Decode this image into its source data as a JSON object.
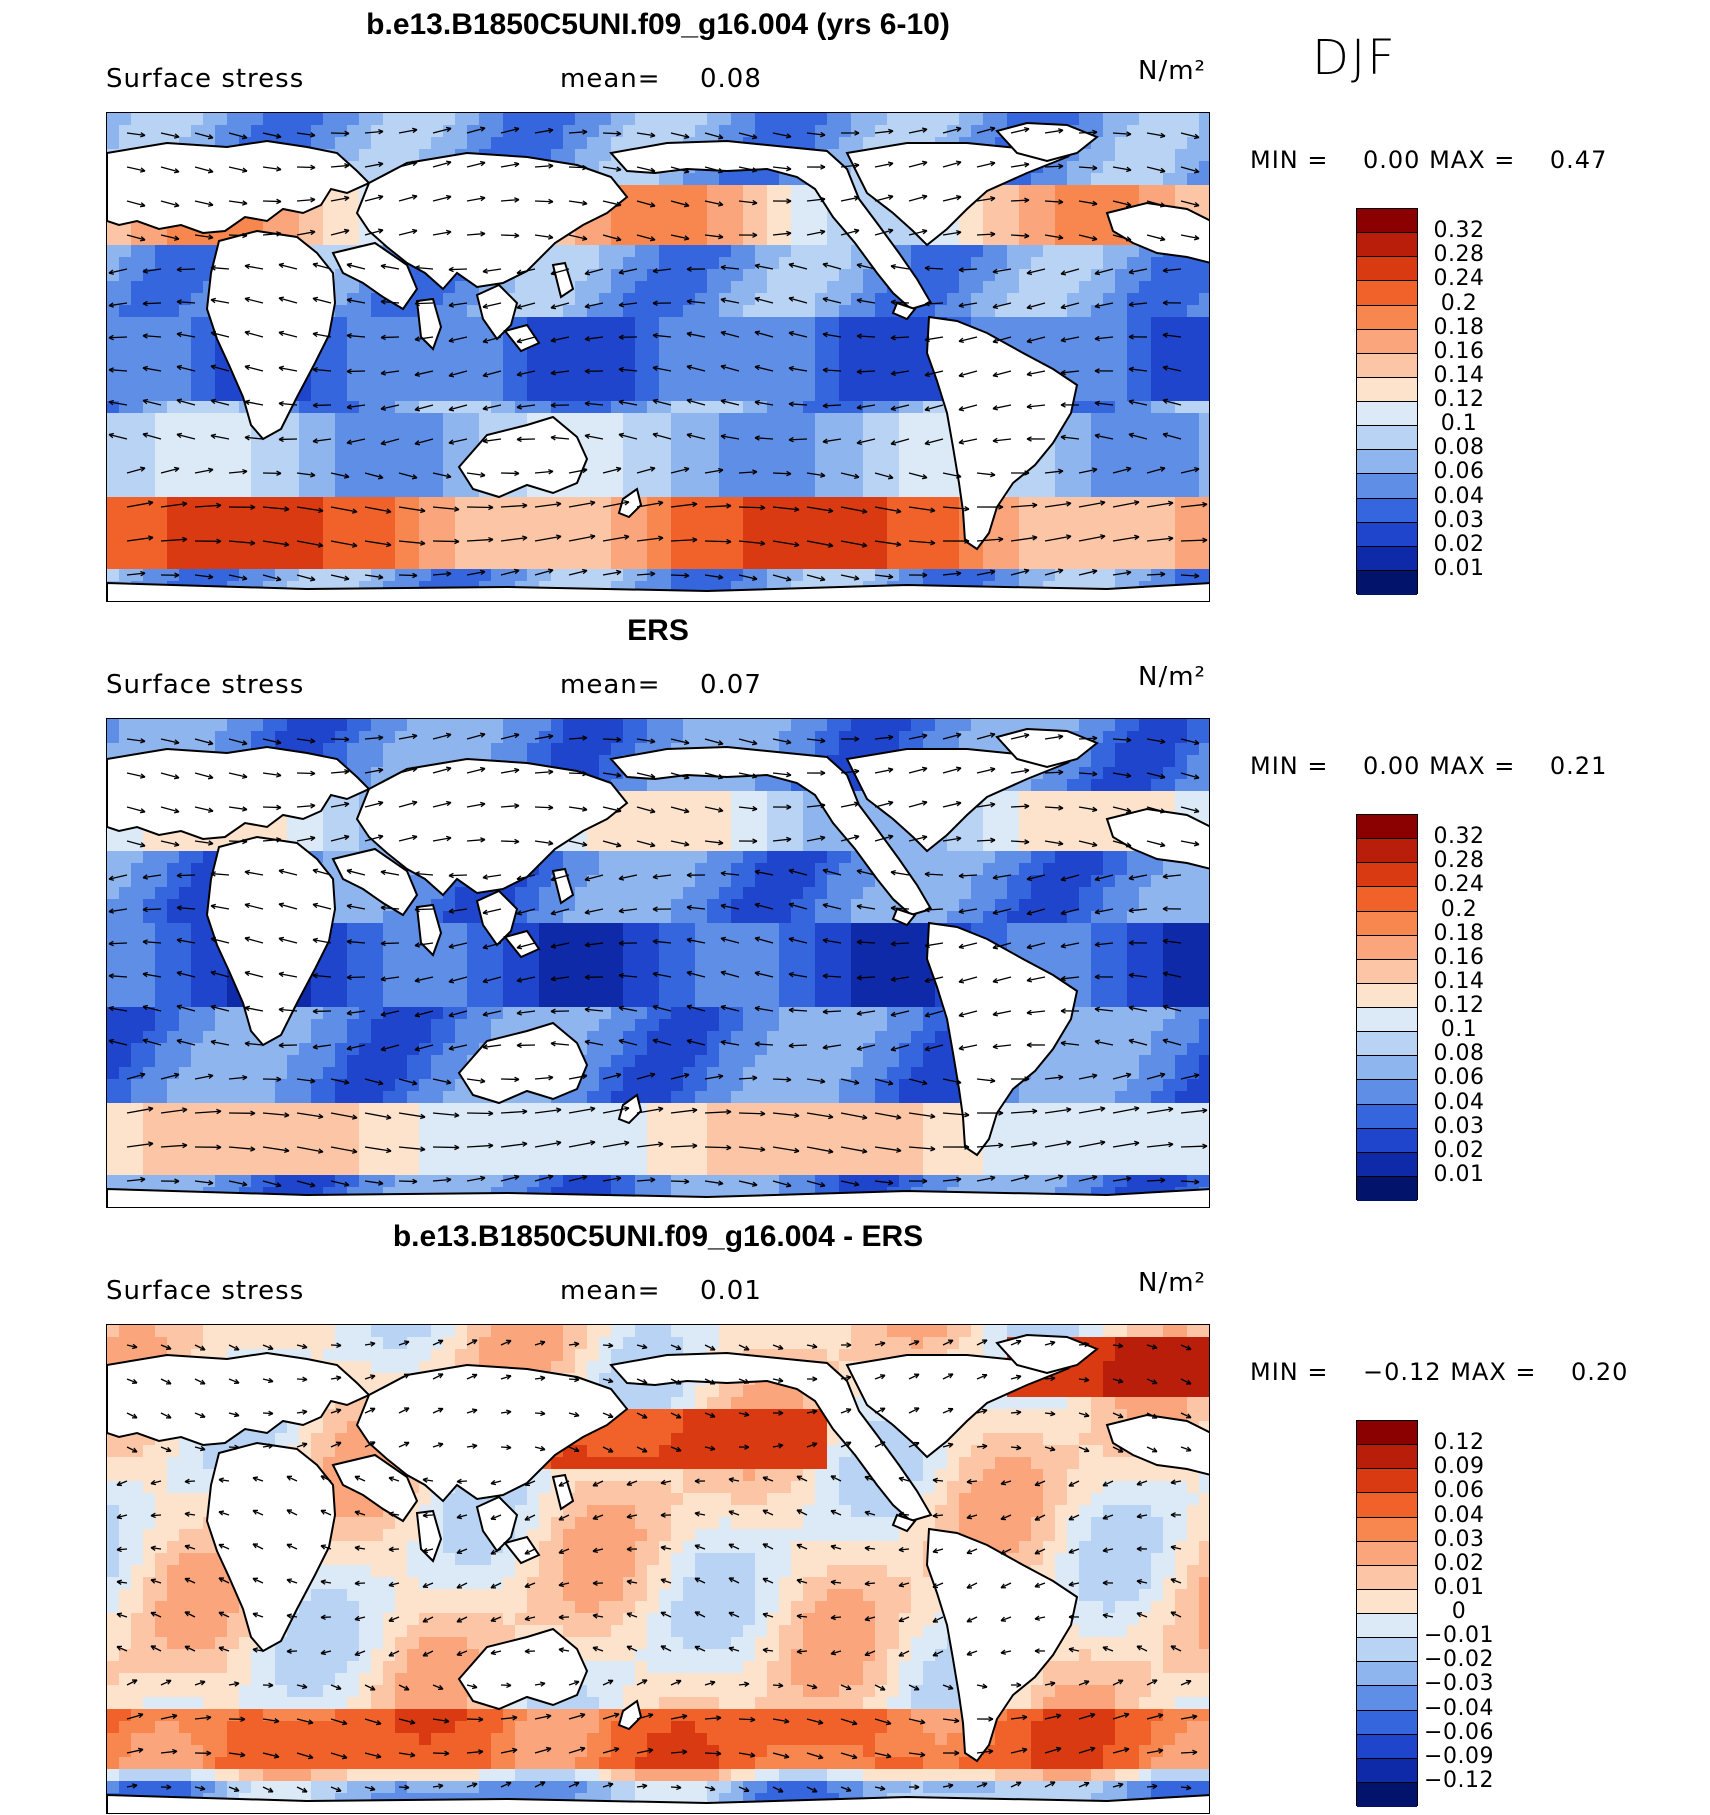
{
  "season": "DJF",
  "panels": [
    {
      "title": "b.e13.B1850C5UNI.f09_g16.004 (yrs 6-10)",
      "variable": "Surface stress",
      "mean_label": "mean=",
      "mean_value": "0.08",
      "units": "N/m²",
      "min_label": "MIN =",
      "min_value": "0.00",
      "max_label": "MAX =",
      "max_value": "0.47",
      "levels": [
        "0.32",
        "0.28",
        "0.24",
        "0.2",
        "0.18",
        "0.16",
        "0.14",
        "0.12",
        "0.1",
        "0.08",
        "0.06",
        "0.04",
        "0.03",
        "0.02",
        "0.01"
      ],
      "colors": [
        "#8b0000",
        "#b81e0a",
        "#d93a12",
        "#f0622a",
        "#f7874f",
        "#fba57c",
        "#fcc5a5",
        "#fde2cc",
        "#dce9f7",
        "#b8d3f3",
        "#8fb5ee",
        "#5e8ee6",
        "#3566de",
        "#1f45cc",
        "#0e2aa8",
        "#02136b"
      ]
    },
    {
      "title": "ERS",
      "variable": "Surface stress",
      "mean_label": "mean=",
      "mean_value": "0.07",
      "units": "N/m²",
      "min_label": "MIN =",
      "min_value": "0.00",
      "max_label": "MAX =",
      "max_value": "0.21",
      "levels": [
        "0.32",
        "0.28",
        "0.24",
        "0.2",
        "0.18",
        "0.16",
        "0.14",
        "0.12",
        "0.1",
        "0.08",
        "0.06",
        "0.04",
        "0.03",
        "0.02",
        "0.01"
      ],
      "colors": [
        "#8b0000",
        "#b81e0a",
        "#d93a12",
        "#f0622a",
        "#f7874f",
        "#fba57c",
        "#fcc5a5",
        "#fde2cc",
        "#dce9f7",
        "#b8d3f3",
        "#8fb5ee",
        "#5e8ee6",
        "#3566de",
        "#1f45cc",
        "#0e2aa8",
        "#02136b"
      ]
    },
    {
      "title": "b.e13.B1850C5UNI.f09_g16.004 - ERS",
      "variable": "Surface stress",
      "mean_label": "mean=",
      "mean_value": "0.01",
      "units": "N/m²",
      "min_label": "MIN =",
      "min_value": "−0.12",
      "max_label": "MAX =",
      "max_value": "0.20",
      "levels": [
        "0.12",
        "0.09",
        "0.06",
        "0.04",
        "0.03",
        "0.02",
        "0.01",
        "0",
        "−0.01",
        "−0.02",
        "−0.03",
        "−0.04",
        "−0.06",
        "−0.09",
        "−0.12"
      ],
      "colors": [
        "#8b0000",
        "#b81e0a",
        "#d93a12",
        "#f0622a",
        "#f7874f",
        "#fba57c",
        "#fcc5a5",
        "#fde2cc",
        "#dce9f7",
        "#b8d3f3",
        "#8fb5ee",
        "#5e8ee6",
        "#3566de",
        "#1f45cc",
        "#0e2aa8",
        "#02136b"
      ]
    }
  ]
}
